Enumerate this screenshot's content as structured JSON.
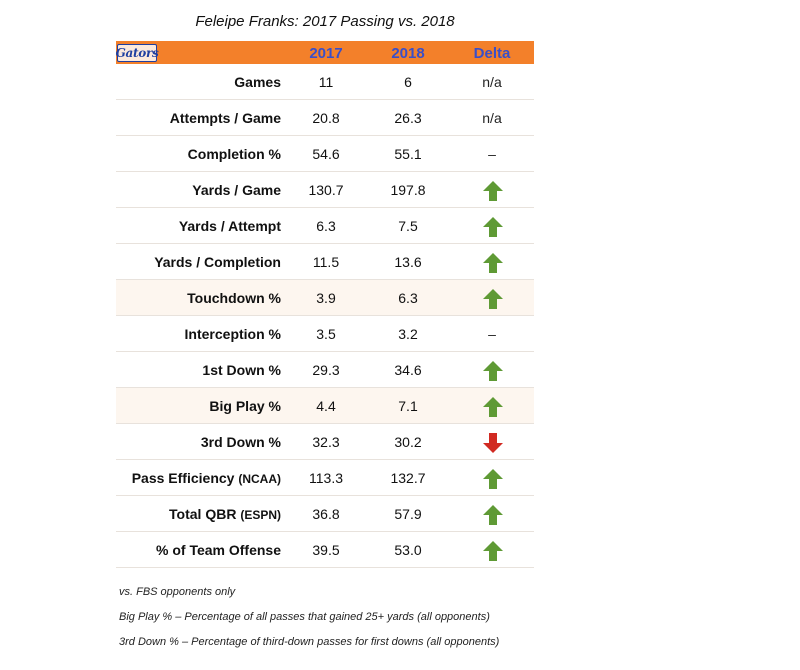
{
  "title": "Feleipe Franks: 2017 Passing vs. 2018",
  "header": {
    "logo_text": "Gators",
    "col1": "2017",
    "col2": "2018",
    "col3": "Delta"
  },
  "colors": {
    "header_bg": "#f3802a",
    "header_text": "#3a4fc8",
    "up": "#5f9a35",
    "down": "#d12a22"
  },
  "rows": [
    {
      "label": "Games",
      "label_small": "",
      "v2017": "11",
      "v2018": "6",
      "delta_text": "n/a",
      "delta": "text"
    },
    {
      "label": "Attempts / Game",
      "label_small": "",
      "v2017": "20.8",
      "v2018": "26.3",
      "delta_text": "n/a",
      "delta": "text"
    },
    {
      "label": "Completion %",
      "label_small": "",
      "v2017": "54.6",
      "v2018": "55.1",
      "delta_text": "–",
      "delta": "text"
    },
    {
      "label": "Yards / Game",
      "label_small": "",
      "v2017": "130.7",
      "v2018": "197.8",
      "delta_text": "",
      "delta": "up"
    },
    {
      "label": "Yards / Attempt",
      "label_small": "",
      "v2017": "6.3",
      "v2018": "7.5",
      "delta_text": "",
      "delta": "up"
    },
    {
      "label": "Yards / Completion",
      "label_small": "",
      "v2017": "11.5",
      "v2018": "13.6",
      "delta_text": "",
      "delta": "up"
    },
    {
      "label": "Touchdown %",
      "label_small": "",
      "v2017": "3.9",
      "v2018": "6.3",
      "delta_text": "",
      "delta": "up"
    },
    {
      "label": "Interception %",
      "label_small": "",
      "v2017": "3.5",
      "v2018": "3.2",
      "delta_text": "–",
      "delta": "text"
    },
    {
      "label": "1st Down %",
      "label_small": "",
      "v2017": "29.3",
      "v2018": "34.6",
      "delta_text": "",
      "delta": "up"
    },
    {
      "label": "Big Play %",
      "label_small": "",
      "v2017": "4.4",
      "v2018": "7.1",
      "delta_text": "",
      "delta": "up"
    },
    {
      "label": "3rd Down %",
      "label_small": "",
      "v2017": "32.3",
      "v2018": "30.2",
      "delta_text": "",
      "delta": "down"
    },
    {
      "label": "Pass Efficiency",
      "label_small": "(NCAA)",
      "v2017": "113.3",
      "v2018": "132.7",
      "delta_text": "",
      "delta": "up"
    },
    {
      "label": "Total QBR",
      "label_small": "(ESPN)",
      "v2017": "36.8",
      "v2018": "57.9",
      "delta_text": "",
      "delta": "up"
    },
    {
      "label": "% of Team Offense",
      "label_small": "",
      "v2017": "39.5",
      "v2018": "53.0",
      "delta_text": "",
      "delta": "up"
    }
  ],
  "notes": [
    "vs. FBS opponents only",
    "Big Play % – Percentage of all passes that gained 25+ yards (all opponents)",
    "3rd Down % – Percentage of third-down passes for first downs (all opponents)"
  ]
}
